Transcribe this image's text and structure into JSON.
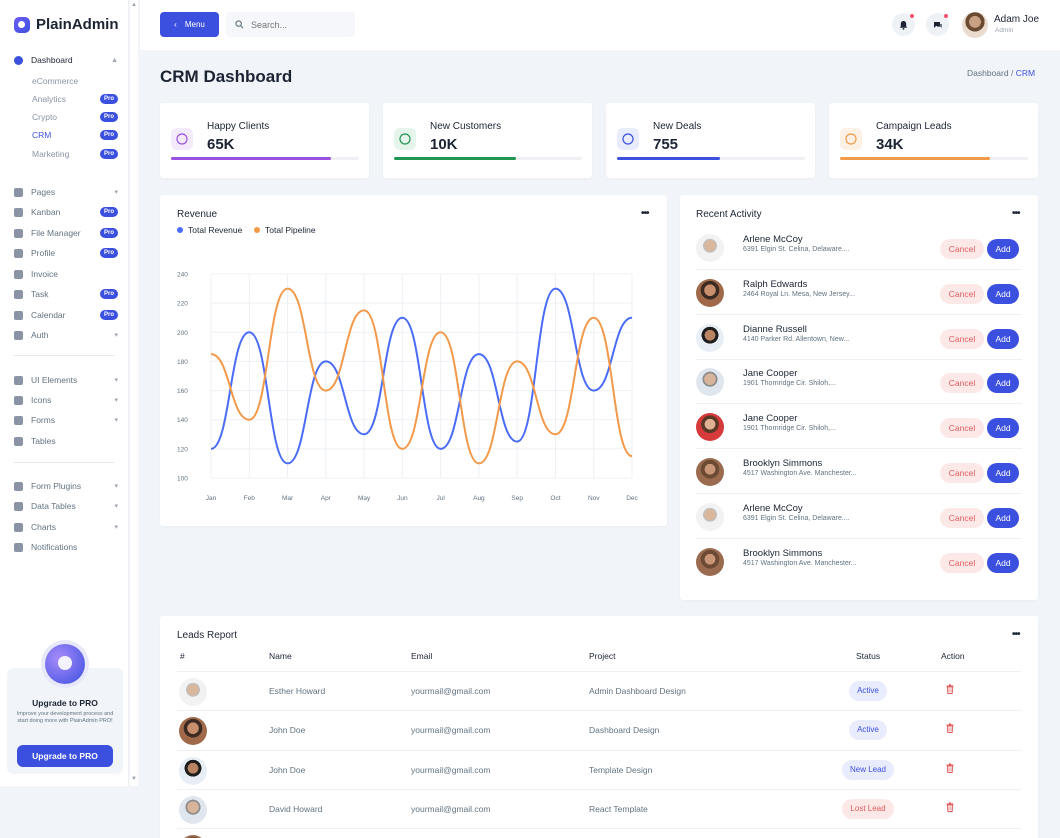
{
  "app": {
    "name": "PlainAdmin"
  },
  "topbar": {
    "menu_label": "Menu",
    "search_placeholder": "Search...",
    "user_name": "Adam Joe",
    "user_role": "Admin"
  },
  "sidebar": {
    "dashboard": {
      "label": "Dashboard",
      "chevron": "▲"
    },
    "dashboard_sub": [
      {
        "label": "eCommerce",
        "badge": ""
      },
      {
        "label": "Analytics",
        "badge": "Pro"
      },
      {
        "label": "Crypto",
        "badge": "Pro"
      },
      {
        "label": "CRM",
        "badge": "Pro"
      },
      {
        "label": "Marketing",
        "badge": "Pro"
      }
    ],
    "group1": [
      {
        "label": "Pages",
        "badge": "",
        "chevron": "▾",
        "icon": "pages-icon"
      },
      {
        "label": "Kanban",
        "badge": "Pro",
        "chevron": "",
        "icon": "kanban-icon"
      },
      {
        "label": "File Manager",
        "badge": "Pro",
        "chevron": "",
        "icon": "folder-icon"
      },
      {
        "label": "Profile",
        "badge": "Pro",
        "chevron": "",
        "icon": "user-icon"
      },
      {
        "label": "Invoice",
        "badge": "",
        "chevron": "",
        "icon": "invoice-icon"
      },
      {
        "label": "Task",
        "badge": "Pro",
        "chevron": "",
        "icon": "task-icon"
      },
      {
        "label": "Calendar",
        "badge": "Pro",
        "chevron": "",
        "icon": "calendar-icon"
      },
      {
        "label": "Auth",
        "badge": "",
        "chevron": "▾",
        "icon": "auth-icon"
      }
    ],
    "group2": [
      {
        "label": "UI Elements",
        "chevron": "▾",
        "icon": "ui-elements-icon"
      },
      {
        "label": "Icons",
        "chevron": "▾",
        "icon": "icons-icon"
      },
      {
        "label": "Forms",
        "chevron": "▾",
        "icon": "forms-icon"
      },
      {
        "label": "Tables",
        "chevron": "",
        "icon": "tables-icon"
      }
    ],
    "group3": [
      {
        "label": "Form Plugins",
        "chevron": "▾",
        "icon": "plug-icon"
      },
      {
        "label": "Data Tables",
        "chevron": "▾",
        "icon": "data-tables-icon"
      },
      {
        "label": "Charts",
        "chevron": "▾",
        "icon": "charts-icon"
      },
      {
        "label": "Notifications",
        "chevron": "",
        "icon": "bell-icon"
      }
    ],
    "upgrade": {
      "title": "Upgrade to PRO",
      "text": "Improve your development process and start doing more with PlainAdmin PRO!",
      "button": "Upgrade to PRO"
    }
  },
  "page": {
    "title": "CRM Dashboard",
    "breadcrumb_root": "Dashboard",
    "breadcrumb_sep": "/",
    "breadcrumb_current": "CRM"
  },
  "stats": [
    {
      "label": "Happy Clients",
      "value": "65K",
      "progress": 0.85,
      "color": "#9b51e0",
      "bg": "#f3ebfc"
    },
    {
      "label": "New Customers",
      "value": "10K",
      "progress": 0.65,
      "color": "#219653",
      "bg": "#e6f5ec"
    },
    {
      "label": "New Deals",
      "value": "755",
      "progress": 0.55,
      "color": "#3c50e0",
      "bg": "#e9ecfc"
    },
    {
      "label": "Campaign Leads",
      "value": "34K",
      "progress": 0.8,
      "color": "#f2994a",
      "bg": "#fdf1e6"
    }
  ],
  "revenue": {
    "title": "Revenue",
    "more": "•••"
  },
  "chart_data": {
    "type": "line",
    "categories": [
      "Jan",
      "Feb",
      "Mar",
      "Apr",
      "May",
      "Jun",
      "Jul",
      "Aug",
      "Sep",
      "Oct",
      "Nov",
      "Dec"
    ],
    "yticks": [
      240,
      220,
      200,
      180,
      160,
      140,
      120,
      100
    ],
    "ylim": [
      100,
      240
    ],
    "series": [
      {
        "name": "Total Revenue",
        "color": "#4a6cf7",
        "values": [
          120,
          200,
          110,
          180,
          130,
          210,
          120,
          185,
          125,
          230,
          160,
          210
        ]
      },
      {
        "name": "Total Pipeline",
        "color": "#f2994a",
        "values": [
          185,
          140,
          230,
          160,
          215,
          120,
          200,
          110,
          180,
          130,
          210,
          115
        ]
      }
    ]
  },
  "activity": {
    "title": "Recent Activity",
    "more": "•••",
    "cancel_label": "Cancel",
    "add_label": "Add",
    "items": [
      {
        "name": "Arlene McCoy",
        "address": "6391 Elgin St. Celina, Delaware....",
        "avatar": "av1"
      },
      {
        "name": "Ralph Edwards",
        "address": "2464 Royal Ln. Mesa, New Jersey...",
        "avatar": "av2"
      },
      {
        "name": "Dianne Russell",
        "address": "4140 Parker Rd. Allentown, New...",
        "avatar": "av3"
      },
      {
        "name": "Jane Cooper",
        "address": "1901 Thornridge Cir. Shiloh,...",
        "avatar": "av4"
      },
      {
        "name": "Jane Cooper",
        "address": "1901 Thornridge Cir. Shiloh,...",
        "avatar": "av5"
      },
      {
        "name": "Brooklyn Simmons",
        "address": "4517 Washington Ave. Manchester...",
        "avatar": "av6"
      },
      {
        "name": "Arlene McCoy",
        "address": "6391 Elgin St. Celina, Delaware....",
        "avatar": "av1"
      },
      {
        "name": "Brooklyn Simmons",
        "address": "4517 Washington Ave. Manchester...",
        "avatar": "av6"
      }
    ]
  },
  "leads": {
    "title": "Leads Report",
    "more": "•••",
    "headers": {
      "num": "#",
      "name": "Name",
      "email": "Email",
      "project": "Project",
      "status": "Status",
      "action": "Action"
    },
    "rows": [
      {
        "name": "Esther Howard",
        "email": "yourmail@gmail.com",
        "project": "Admin Dashboard Design",
        "status": "Active",
        "avatar": "av1"
      },
      {
        "name": "John Doe",
        "email": "yourmail@gmail.com",
        "project": "Dashboard Design",
        "status": "Active",
        "avatar": "av2"
      },
      {
        "name": "John Doe",
        "email": "yourmail@gmail.com",
        "project": "Template Design",
        "status": "New Lead",
        "avatar": "av3"
      },
      {
        "name": "David Howard",
        "email": "yourmail@gmail.com",
        "project": "React Template",
        "status": "Lost Lead",
        "avatar": "av4"
      }
    ],
    "status_colors": {
      "Active": {
        "bg": "#e8ecfd",
        "fg": "#3c50e0"
      },
      "New Lead": {
        "bg": "#e8ecfd",
        "fg": "#3c50e0"
      },
      "Lost Lead": {
        "bg": "#fde8e8",
        "fg": "#e25c5c"
      }
    }
  }
}
